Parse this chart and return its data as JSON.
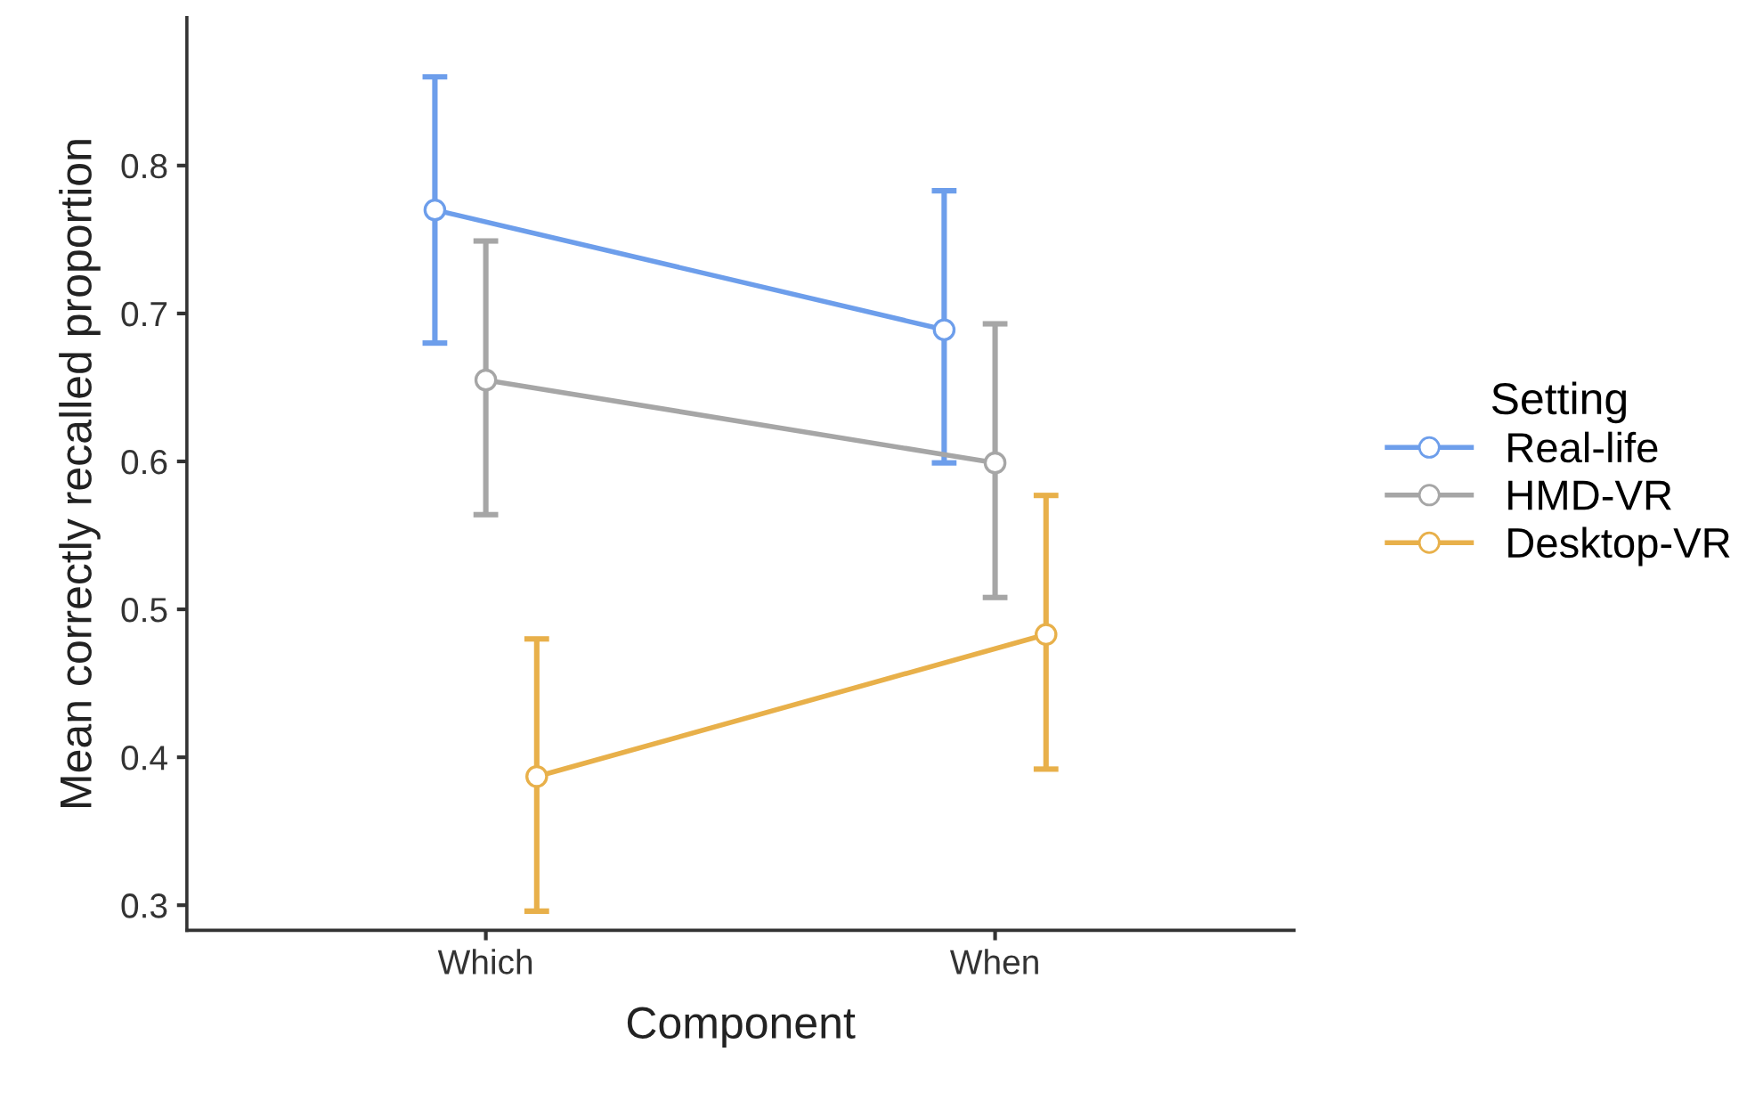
{
  "chart_data": {
    "type": "line",
    "xlabel": "Component",
    "ylabel": "Mean correctly recalled proportion",
    "legend_title": "Setting",
    "categories": [
      "Which",
      "When"
    ],
    "series": [
      {
        "name": "Real-life",
        "color": "#6d9eeb",
        "values": [
          0.77,
          0.689
        ],
        "errors": [
          [
            0.68,
            0.86
          ],
          [
            0.599,
            0.783
          ]
        ]
      },
      {
        "name": "HMD-VR",
        "color": "#a6a6a6",
        "values": [
          0.655,
          0.599
        ],
        "errors": [
          [
            0.564,
            0.749
          ],
          [
            0.508,
            0.693
          ]
        ]
      },
      {
        "name": "Desktop-VR",
        "color": "#e8b04a",
        "values": [
          0.387,
          0.483
        ],
        "errors": [
          [
            0.296,
            0.48
          ],
          [
            0.392,
            0.577
          ]
        ]
      }
    ],
    "ylim": [
      0.283,
      0.9
    ],
    "yticks": [
      0.3,
      0.4,
      0.5,
      0.6,
      0.7,
      0.8
    ],
    "grid": false,
    "legend": "right",
    "marker": "circle",
    "line_style": "solid"
  }
}
